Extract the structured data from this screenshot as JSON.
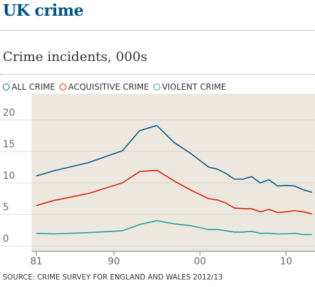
{
  "header": {
    "title": "UK crime",
    "subtitle": "Crime incidents, 000s"
  },
  "legend": [
    {
      "label": "ALL CRIME",
      "color": "#005689"
    },
    {
      "label": "ACQUISITIVE CRIME",
      "color": "#d61d00"
    },
    {
      "label": "VIOLENT CRIME",
      "color": "#1e9e9e"
    }
  ],
  "source": "SOURCE: CRIME SURVEY FOR ENGLAND AND WALES 2012/13",
  "chart_data": {
    "type": "line",
    "title": "Crime incidents, 000s",
    "xlabel": "",
    "ylabel": "",
    "xlim": [
      1981,
      2013
    ],
    "ylim": [
      0,
      25
    ],
    "x_ticks": [
      {
        "value": 1981,
        "label": "81"
      },
      {
        "value": 1990,
        "label": "90"
      },
      {
        "value": 2000,
        "label": "00"
      },
      {
        "value": 2010,
        "label": "10"
      }
    ],
    "y_ticks": [
      {
        "value": 0,
        "label": "0"
      },
      {
        "value": 5,
        "label": "5"
      },
      {
        "value": 10,
        "label": "10"
      },
      {
        "value": 15,
        "label": "15"
      },
      {
        "value": 20,
        "label": "20"
      }
    ],
    "grid": true,
    "plot_background": "#ede8df",
    "legend_position": "top-left",
    "series": [
      {
        "name": "ALL CRIME",
        "color": "#005689",
        "x": [
          1981,
          1983,
          1987,
          1991,
          1993,
          1995,
          1997,
          1999,
          2001,
          2002,
          2003,
          2004,
          2005,
          2006,
          2007,
          2008,
          2009,
          2010,
          2011,
          2012,
          2013
        ],
        "y": [
          11.1,
          11.9,
          13.2,
          15.1,
          18.3,
          19.1,
          16.4,
          14.6,
          12.5,
          12.2,
          11.5,
          10.6,
          10.6,
          11.0,
          10.0,
          10.5,
          9.5,
          9.6,
          9.5,
          8.9,
          8.5
        ]
      },
      {
        "name": "ACQUISITIVE CRIME",
        "color": "#d61d00",
        "x": [
          1981,
          1983,
          1987,
          1991,
          1993,
          1995,
          1997,
          1999,
          2001,
          2002,
          2003,
          2004,
          2005,
          2006,
          2007,
          2008,
          2009,
          2010,
          2011,
          2012,
          2013
        ],
        "y": [
          6.4,
          7.2,
          8.3,
          10.0,
          11.8,
          12.0,
          10.3,
          8.8,
          7.5,
          7.3,
          6.8,
          6.0,
          5.9,
          5.9,
          5.4,
          5.8,
          5.3,
          5.4,
          5.6,
          5.4,
          5.1
        ]
      },
      {
        "name": "VIOLENT CRIME",
        "color": "#1e9e9e",
        "x": [
          1981,
          1983,
          1987,
          1991,
          1993,
          1995,
          1997,
          1999,
          2001,
          2002,
          2003,
          2004,
          2005,
          2006,
          2007,
          2008,
          2009,
          2010,
          2011,
          2012,
          2013
        ],
        "y": [
          2.0,
          1.9,
          2.1,
          2.4,
          3.4,
          4.0,
          3.5,
          3.2,
          2.6,
          2.6,
          2.4,
          2.2,
          2.2,
          2.3,
          2.0,
          2.0,
          1.9,
          1.9,
          2.0,
          1.8,
          1.8
        ]
      }
    ]
  }
}
